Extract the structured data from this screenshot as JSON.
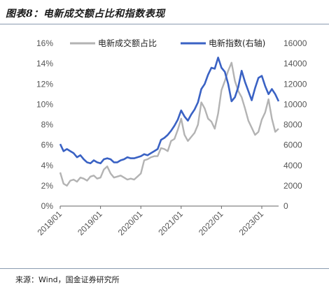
{
  "header": {
    "title": "图表8：电新成交额占比和指数表现"
  },
  "footer": {
    "source": "来源：Wind，国金证券研究所"
  },
  "chart_data": {
    "type": "line",
    "title": "图表8：电新成交额占比和指数表现",
    "x_ticks": [
      "2018/01",
      "2019/01",
      "2020/01",
      "2021/01",
      "2022/01",
      "2023/01"
    ],
    "x_range": [
      "2018/01",
      "2023/06"
    ],
    "y_left": {
      "ticks": [
        "0%",
        "2%",
        "4%",
        "6%",
        "8%",
        "10%",
        "12%",
        "14%",
        "16%"
      ],
      "range": [
        0,
        16
      ]
    },
    "y_right": {
      "ticks": [
        "0",
        "2000",
        "4000",
        "6000",
        "8000",
        "10000",
        "12000",
        "14000",
        "16000"
      ],
      "range": [
        0,
        16000
      ]
    },
    "grid": false,
    "legend": "top",
    "colors": {
      "share": "#b3b3b3",
      "index": "#3a62c4"
    },
    "series": [
      {
        "name": "电新成交额占比",
        "axis": "left",
        "x": [
          "2018/01",
          "2018/02",
          "2018/03",
          "2018/04",
          "2018/05",
          "2018/06",
          "2018/07",
          "2018/08",
          "2018/09",
          "2018/10",
          "2018/11",
          "2018/12",
          "2019/01",
          "2019/02",
          "2019/03",
          "2019/04",
          "2019/05",
          "2019/06",
          "2019/07",
          "2019/08",
          "2019/09",
          "2019/10",
          "2019/11",
          "2019/12",
          "2020/01",
          "2020/02",
          "2020/03",
          "2020/04",
          "2020/05",
          "2020/06",
          "2020/07",
          "2020/08",
          "2020/09",
          "2020/10",
          "2020/11",
          "2020/12",
          "2021/01",
          "2021/02",
          "2021/03",
          "2021/04",
          "2021/05",
          "2021/06",
          "2021/07",
          "2021/08",
          "2021/09",
          "2021/10",
          "2021/11",
          "2021/12",
          "2022/01",
          "2022/02",
          "2022/03",
          "2022/04",
          "2022/05",
          "2022/06",
          "2022/07",
          "2022/08",
          "2022/09",
          "2022/10",
          "2022/11",
          "2022/12",
          "2023/01",
          "2023/02",
          "2023/03",
          "2023/04",
          "2023/05",
          "2023/06"
        ],
        "values": [
          3.3,
          2.2,
          2.0,
          2.5,
          2.6,
          2.4,
          2.8,
          2.7,
          2.5,
          2.9,
          3.0,
          2.7,
          2.8,
          3.6,
          3.9,
          3.2,
          2.8,
          2.9,
          3.0,
          2.8,
          2.6,
          2.7,
          2.6,
          2.9,
          3.2,
          4.5,
          4.6,
          4.8,
          4.9,
          4.9,
          5.7,
          5.6,
          5.4,
          6.4,
          6.6,
          7.5,
          8.6,
          7.0,
          6.4,
          6.8,
          7.2,
          8.0,
          10.2,
          9.6,
          8.6,
          8.3,
          7.6,
          9.1,
          11.4,
          12.3,
          13.3,
          14.1,
          12.3,
          11.3,
          10.7,
          9.6,
          8.4,
          7.7,
          7.0,
          7.3,
          8.5,
          9.2,
          10.5,
          8.6,
          7.3,
          7.6
        ]
      },
      {
        "name": "电新指数(右轴)",
        "axis": "right",
        "x": [
          "2018/01",
          "2018/02",
          "2018/03",
          "2018/04",
          "2018/05",
          "2018/06",
          "2018/07",
          "2018/08",
          "2018/09",
          "2018/10",
          "2018/11",
          "2018/12",
          "2019/01",
          "2019/02",
          "2019/03",
          "2019/04",
          "2019/05",
          "2019/06",
          "2019/07",
          "2019/08",
          "2019/09",
          "2019/10",
          "2019/11",
          "2019/12",
          "2020/01",
          "2020/02",
          "2020/03",
          "2020/04",
          "2020/05",
          "2020/06",
          "2020/07",
          "2020/08",
          "2020/09",
          "2020/10",
          "2020/11",
          "2020/12",
          "2021/01",
          "2021/02",
          "2021/03",
          "2021/04",
          "2021/05",
          "2021/06",
          "2021/07",
          "2021/08",
          "2021/09",
          "2021/10",
          "2021/11",
          "2021/12",
          "2022/01",
          "2022/02",
          "2022/03",
          "2022/04",
          "2022/05",
          "2022/06",
          "2022/07",
          "2022/08",
          "2022/09",
          "2022/10",
          "2022/11",
          "2022/12",
          "2023/01",
          "2023/02",
          "2023/03",
          "2023/04",
          "2023/05",
          "2023/06"
        ],
        "values": [
          6100,
          5400,
          5600,
          5400,
          5200,
          4800,
          5000,
          4600,
          4300,
          4200,
          4500,
          4300,
          4200,
          4600,
          4700,
          4600,
          4300,
          4300,
          4500,
          4600,
          4800,
          4700,
          4700,
          4800,
          4900,
          5100,
          5000,
          5200,
          5400,
          5600,
          6500,
          6700,
          7000,
          7400,
          7900,
          8500,
          9400,
          8800,
          8400,
          9000,
          9500,
          10200,
          11500,
          12000,
          12900,
          13600,
          13500,
          14600,
          13600,
          13200,
          12000,
          10300,
          10700,
          11700,
          13300,
          12200,
          11300,
          10400,
          11600,
          12600,
          12800,
          11800,
          11000,
          11500,
          11000,
          10300
        ]
      }
    ]
  }
}
